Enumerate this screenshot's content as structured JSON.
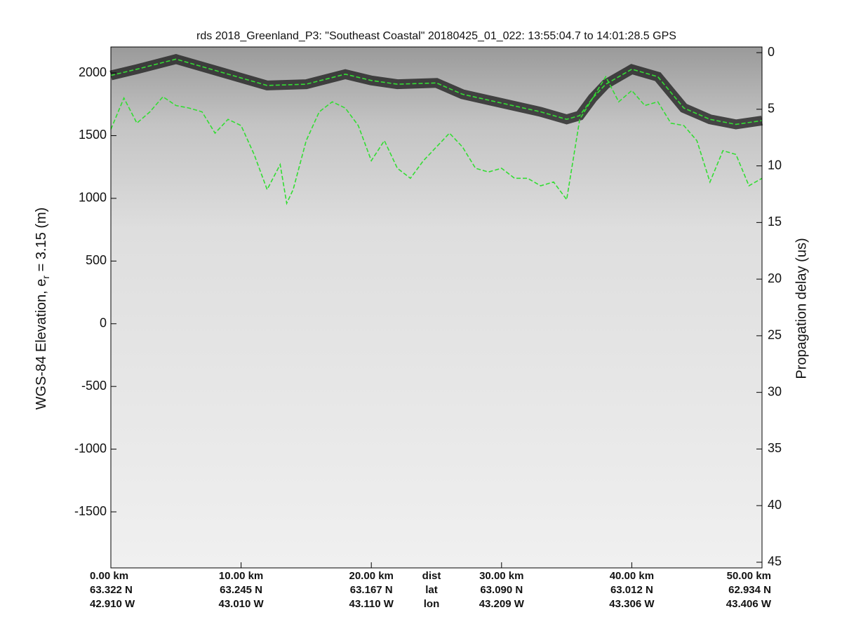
{
  "chart_data": {
    "type": "line",
    "title": "rds 2018_Greenland_P3: \"Southeast Coastal\"  20180425_01_022: 13:55:04.7 to 14:01:28.5 GPS",
    "ylabel_parts": [
      "WGS-84 Elevation, e",
      "r",
      " = 3.15 (m)"
    ],
    "y2label": "Propagation delay (us)",
    "xlim": [
      0,
      50
    ],
    "ylim": [
      -1947,
      2207
    ],
    "y2lim": [
      -0.5,
      45.5
    ],
    "yticks": [
      2000,
      1500,
      1000,
      500,
      0,
      -500,
      -1000,
      -1500
    ],
    "y2ticks": [
      0,
      5,
      10,
      15,
      20,
      25,
      30,
      35,
      40,
      45
    ],
    "xticks": [
      {
        "value": 0,
        "label": "0.00 km"
      },
      {
        "value": 10,
        "label": "10.00 km"
      },
      {
        "value": 20,
        "label": "20.00 km"
      },
      {
        "value": 30,
        "label": "30.00 km"
      },
      {
        "value": 40,
        "label": "40.00 km"
      },
      {
        "value": 50,
        "label": "50.00 km"
      }
    ],
    "lat_labels": [
      "63.322 N",
      "63.245 N",
      "63.167 N",
      "63.090 N",
      "63.012 N",
      "62.934 N"
    ],
    "lon_labels": [
      "42.910 W",
      "43.010 W",
      "43.110 W",
      "43.209 W",
      "43.306 W",
      "43.406 W"
    ],
    "row_labels": [
      "dist",
      "lat",
      "lon"
    ],
    "series": [
      {
        "color": "#33dd33",
        "linestyle": "dashed",
        "x": [
          0,
          2,
          5,
          8,
          12,
          15,
          18,
          20,
          22,
          25,
          27,
          30,
          33,
          35,
          36,
          37,
          38,
          40,
          42,
          44,
          46,
          48,
          50
        ],
        "values": [
          1980,
          2030,
          2110,
          2020,
          1900,
          1910,
          1990,
          1940,
          1910,
          1920,
          1830,
          1760,
          1690,
          1630,
          1660,
          1800,
          1910,
          2030,
          1970,
          1720,
          1630,
          1590,
          1620
        ]
      },
      {
        "color": "#33dd33",
        "linestyle": "dashed",
        "x": [
          0,
          1,
          2,
          3,
          4,
          5,
          6,
          7,
          8,
          9,
          10,
          11,
          12,
          13,
          13.5,
          14,
          15,
          16,
          17,
          18,
          19,
          20,
          21,
          22,
          23,
          24,
          25,
          26,
          27,
          28,
          29,
          30,
          31,
          32,
          33,
          34,
          35,
          36,
          37,
          38,
          39,
          40,
          41,
          42,
          43,
          44,
          45,
          46,
          47,
          48,
          49,
          50
        ],
        "values": [
          1550,
          1800,
          1600,
          1690,
          1810,
          1740,
          1720,
          1690,
          1520,
          1630,
          1580,
          1350,
          1070,
          1270,
          960,
          1070,
          1460,
          1690,
          1770,
          1720,
          1580,
          1300,
          1460,
          1240,
          1160,
          1300,
          1410,
          1520,
          1410,
          1240,
          1210,
          1240,
          1160,
          1160,
          1100,
          1130,
          990,
          1630,
          1800,
          1970,
          1770,
          1860,
          1740,
          1770,
          1600,
          1580,
          1460,
          1130,
          1380,
          1350,
          1100,
          1160
        ]
      }
    ]
  }
}
